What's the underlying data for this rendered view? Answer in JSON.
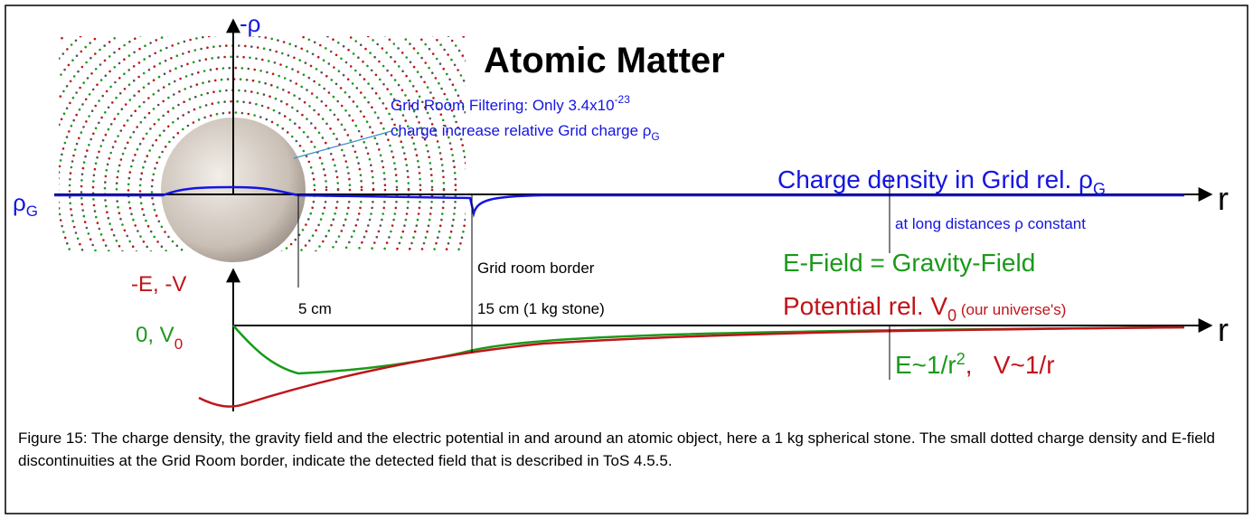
{
  "title": "Atomic Matter",
  "axes": {
    "rho_neg": "-ρ",
    "rho_g": {
      "main": "ρ",
      "sub": "G"
    },
    "r_upper": "r",
    "r_lower": "r",
    "ev_neg": "-E, -V",
    "zero_v0": {
      "main": "0, V",
      "sub": "0"
    }
  },
  "annotations": {
    "filtering": {
      "line1": "Grid Room Filtering: Only 3.4x10",
      "line1_sup": "-23",
      "line2": "charge increase relative Grid charge ρ",
      "line2_sub": "G"
    },
    "charge_density": {
      "main": "Charge density in Grid rel. ρ",
      "sub": "G"
    },
    "long_distance": "at long distances ρ constant",
    "e_field": "E-Field = Gravity-Field",
    "potential": {
      "main": "Potential rel. V",
      "sub": "0",
      "note": " (our universe's)"
    },
    "border_label": "Grid room border",
    "border_size": "15 cm (1 kg stone)",
    "radius": "5 cm",
    "laws": {
      "e": "E~1/r",
      "e_sup": "2",
      "v": ",   V~1/r"
    }
  },
  "caption": "Figure 15: The charge density, the gravity field and the electric potential in and around an atomic object, here a 1 kg spherical stone. The small dotted charge density and E-field discontinuities at the Grid Room border, indicate the detected field that is described in ToS 4.5.5."
}
